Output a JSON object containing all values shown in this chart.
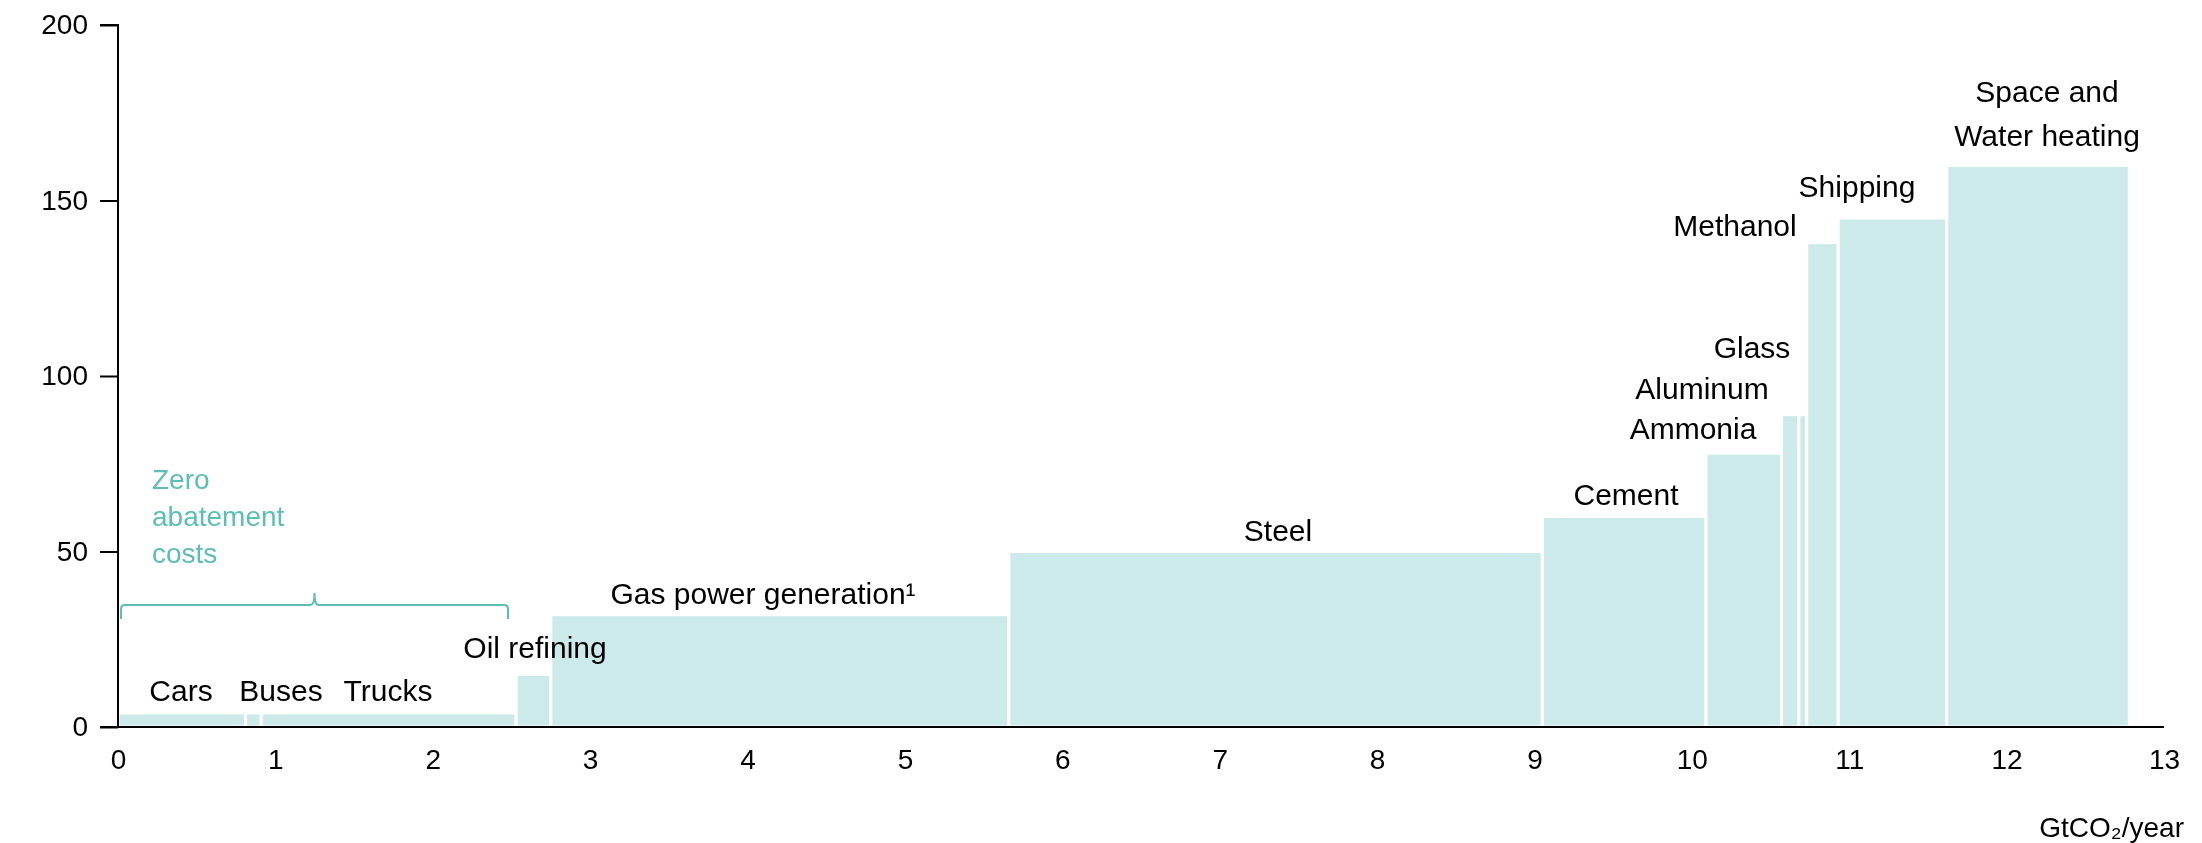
{
  "chart_data": {
    "type": "histogram",
    "xlabel": "GtCO₂/year",
    "xlim": [
      0,
      13
    ],
    "xticks": [
      0,
      1,
      2,
      3,
      4,
      5,
      6,
      7,
      8,
      9,
      10,
      11,
      12,
      13
    ],
    "ylim": [
      0,
      200
    ],
    "yticks": [
      0,
      50,
      100,
      150,
      200
    ],
    "grid": false,
    "bins": [
      0,
      0.81,
      0.91,
      2.53,
      2.75,
      5.66,
      9.05,
      10.09,
      10.57,
      10.68,
      10.73,
      10.93,
      11.62,
      12.78
    ],
    "values": [
      4,
      4,
      4,
      15,
      32,
      50,
      60,
      78,
      89,
      89,
      138,
      145,
      160
    ],
    "color": "#cdeaea",
    "annotations": [
      "Cars",
      "Buses",
      "Trucks",
      "Oil refining",
      "Gas power generation¹",
      "Steel",
      "Cement",
      "Ammonia",
      "Aluminum",
      "Glass",
      "Methanol",
      "Shipping",
      "Space and\nWater heating",
      "Zero abatement costs"
    ]
  }
}
